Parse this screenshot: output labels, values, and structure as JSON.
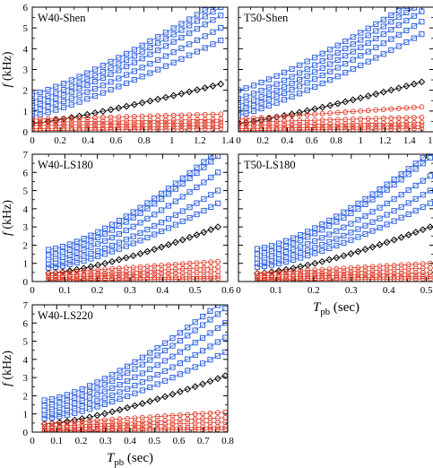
{
  "colors": {
    "blue": "#2f62e0",
    "black": "#000000",
    "red": "#e0321e"
  },
  "chart_data": [
    {
      "type": "line",
      "title": "W40-Shen",
      "ylabel": "f (kHz)",
      "xlabel": "",
      "xlim": [
        0,
        1.4
      ],
      "ylim": [
        0,
        6
      ],
      "xticks": [
        "0",
        "0.2",
        "0.4",
        "0.6",
        "0.8",
        "1",
        "1.2",
        "1.4"
      ],
      "yticks": [
        "0",
        "1",
        "2",
        "3",
        "4",
        "5",
        "6"
      ],
      "x_end": 1.35,
      "series": [
        {
          "group": "blue",
          "start": 1.8,
          "end": 6.3,
          "p": 1.2
        },
        {
          "group": "blue",
          "start": 1.5,
          "end": 6.0,
          "p": 1.2
        },
        {
          "group": "blue",
          "start": 1.25,
          "end": 5.6,
          "p": 1.2
        },
        {
          "group": "blue",
          "start": 1.0,
          "end": 5.0,
          "p": 1.2
        },
        {
          "group": "blue",
          "start": 0.75,
          "end": 4.4,
          "p": 1.2
        },
        {
          "group": "black",
          "start": 0.4,
          "end": 2.3,
          "p": 1.2
        },
        {
          "group": "red",
          "start": 0.6,
          "end": 0.85,
          "p": 1.0
        },
        {
          "group": "red",
          "start": 0.45,
          "end": 0.6,
          "p": 1.0
        },
        {
          "group": "red",
          "start": 0.3,
          "end": 0.45,
          "p": 1.0
        },
        {
          "group": "red",
          "start": 0.15,
          "end": 0.3,
          "p": 1.0
        },
        {
          "group": "red",
          "start": 0.05,
          "end": 0.15,
          "p": 1.0
        }
      ]
    },
    {
      "type": "line",
      "title": "T50-Shen",
      "ylabel": "",
      "xlabel": "",
      "xlim": [
        0,
        1.6
      ],
      "ylim": [
        0,
        6
      ],
      "xticks": [
        "0",
        "0.2",
        "0.4",
        "0.6",
        "0.8",
        "1",
        "1.2",
        "1.4",
        "1.6"
      ],
      "yticks": [],
      "x_end": 1.5,
      "series": [
        {
          "group": "blue",
          "start": 2.0,
          "end": 6.5,
          "p": 1.2
        },
        {
          "group": "blue",
          "start": 1.6,
          "end": 6.2,
          "p": 1.2
        },
        {
          "group": "blue",
          "start": 1.3,
          "end": 5.8,
          "p": 1.2
        },
        {
          "group": "blue",
          "start": 1.05,
          "end": 5.3,
          "p": 1.2
        },
        {
          "group": "blue",
          "start": 0.8,
          "end": 4.7,
          "p": 1.2
        },
        {
          "group": "black",
          "start": 0.4,
          "end": 2.4,
          "p": 1.2
        },
        {
          "group": "red",
          "start": 0.6,
          "end": 1.2,
          "p": 1.0
        },
        {
          "group": "red",
          "start": 0.45,
          "end": 0.7,
          "p": 1.0
        },
        {
          "group": "red",
          "start": 0.3,
          "end": 0.45,
          "p": 1.0
        },
        {
          "group": "red",
          "start": 0.15,
          "end": 0.3,
          "p": 1.0
        },
        {
          "group": "red",
          "start": 0.05,
          "end": 0.15,
          "p": 1.0
        }
      ]
    },
    {
      "type": "line",
      "title": "W40-LS180",
      "ylabel": "f (kHz)",
      "xlabel": "",
      "xlim": [
        0,
        0.6
      ],
      "ylim": [
        0,
        7
      ],
      "xticks": [
        "0",
        "0.1",
        "0.2",
        "0.3",
        "0.4",
        "0.5",
        "0.6"
      ],
      "yticks": [
        "0",
        "1",
        "2",
        "3",
        "4",
        "5",
        "6",
        "7"
      ],
      "x_start": 0.05,
      "x_end": 0.57,
      "series": [
        {
          "group": "blue",
          "start": 1.75,
          "end": 7.2,
          "p": 1.4
        },
        {
          "group": "blue",
          "start": 1.45,
          "end": 6.9,
          "p": 1.4
        },
        {
          "group": "blue",
          "start": 1.2,
          "end": 6.0,
          "p": 1.4
        },
        {
          "group": "blue",
          "start": 0.95,
          "end": 5.0,
          "p": 1.4
        },
        {
          "group": "blue",
          "start": 0.75,
          "end": 4.3,
          "p": 1.4
        },
        {
          "group": "black",
          "start": 0.45,
          "end": 3.0,
          "p": 1.4
        },
        {
          "group": "red",
          "start": 0.45,
          "end": 1.1,
          "p": 1.0
        },
        {
          "group": "red",
          "start": 0.3,
          "end": 0.8,
          "p": 1.0
        },
        {
          "group": "red",
          "start": 0.2,
          "end": 0.55,
          "p": 1.0
        },
        {
          "group": "red",
          "start": 0.1,
          "end": 0.3,
          "p": 1.0
        },
        {
          "group": "red",
          "start": 0.05,
          "end": 0.15,
          "p": 1.0
        }
      ]
    },
    {
      "type": "line",
      "title": "T50-LS180",
      "ylabel": "",
      "xlabel": "Tpb (sec)",
      "xlim": [
        0,
        0.52
      ],
      "ylim": [
        0,
        7
      ],
      "xticks": [
        "0",
        "0.1",
        "0.2",
        "0.3",
        "0.4",
        "0.5"
      ],
      "yticks": [],
      "x_start": 0.05,
      "x_end": 0.51,
      "series": [
        {
          "group": "blue",
          "start": 1.8,
          "end": 7.1,
          "p": 1.4
        },
        {
          "group": "blue",
          "start": 1.5,
          "end": 6.8,
          "p": 1.4
        },
        {
          "group": "blue",
          "start": 1.25,
          "end": 5.8,
          "p": 1.4
        },
        {
          "group": "blue",
          "start": 1.0,
          "end": 5.0,
          "p": 1.4
        },
        {
          "group": "blue",
          "start": 0.8,
          "end": 4.3,
          "p": 1.4
        },
        {
          "group": "black",
          "start": 0.45,
          "end": 3.0,
          "p": 1.4
        },
        {
          "group": "red",
          "start": 0.45,
          "end": 1.0,
          "p": 1.0
        },
        {
          "group": "red",
          "start": 0.3,
          "end": 0.75,
          "p": 1.0
        },
        {
          "group": "red",
          "start": 0.2,
          "end": 0.5,
          "p": 1.0
        },
        {
          "group": "red",
          "start": 0.1,
          "end": 0.3,
          "p": 1.0
        },
        {
          "group": "red",
          "start": 0.05,
          "end": 0.15,
          "p": 1.0
        }
      ]
    },
    {
      "type": "line",
      "title": "W40-LS220",
      "ylabel": "f (kHz)",
      "xlabel": "Tpb (sec)",
      "xlim": [
        0,
        0.8
      ],
      "ylim": [
        0,
        7
      ],
      "xticks": [
        "0",
        "0.1",
        "0.2",
        "0.3",
        "0.4",
        "0.5",
        "0.6",
        "0.7",
        "0.8"
      ],
      "yticks": [
        "0",
        "1",
        "2",
        "3",
        "4",
        "5",
        "6",
        "7"
      ],
      "x_start": 0.05,
      "x_end": 0.79,
      "series": [
        {
          "group": "blue",
          "start": 1.75,
          "end": 7.3,
          "p": 1.4
        },
        {
          "group": "blue",
          "start": 1.45,
          "end": 6.8,
          "p": 1.4
        },
        {
          "group": "blue",
          "start": 1.2,
          "end": 6.0,
          "p": 1.4
        },
        {
          "group": "blue",
          "start": 0.95,
          "end": 5.2,
          "p": 1.4
        },
        {
          "group": "blue",
          "start": 0.75,
          "end": 4.4,
          "p": 1.4
        },
        {
          "group": "black",
          "start": 0.45,
          "end": 3.1,
          "p": 1.4
        },
        {
          "group": "red",
          "start": 0.45,
          "end": 1.1,
          "p": 1.0
        },
        {
          "group": "red",
          "start": 0.3,
          "end": 0.8,
          "p": 1.0
        },
        {
          "group": "red",
          "start": 0.2,
          "end": 0.55,
          "p": 1.0
        },
        {
          "group": "red",
          "start": 0.1,
          "end": 0.3,
          "p": 1.0
        },
        {
          "group": "red",
          "start": 0.05,
          "end": 0.15,
          "p": 1.0
        }
      ]
    }
  ]
}
